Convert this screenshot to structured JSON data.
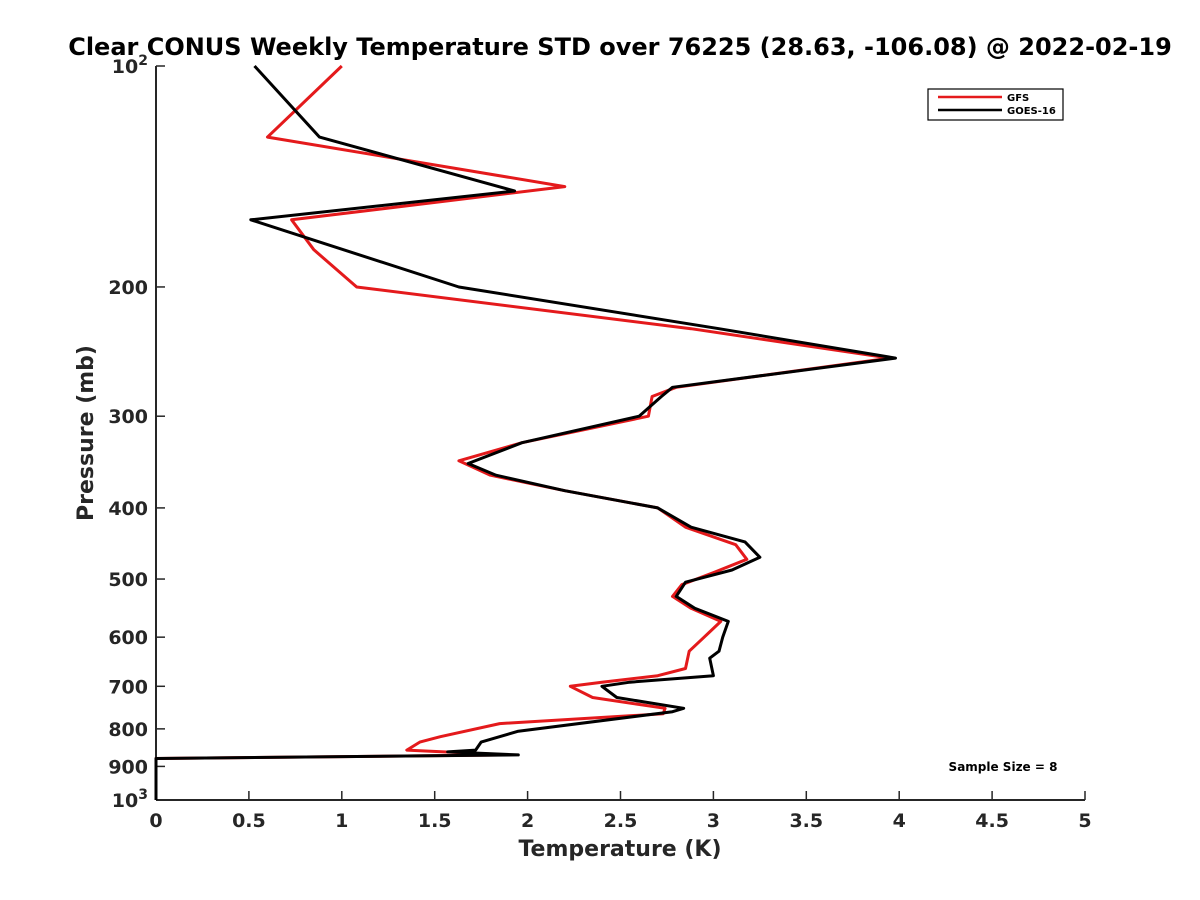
{
  "chart_data": {
    "type": "line",
    "title": "Clear CONUS Weekly Temperature STD over 76225 (28.63, -106.08) @ 2022-02-19",
    "xlabel": "Temperature (K)",
    "ylabel": "Pressure (mb)",
    "xlim": [
      0,
      5
    ],
    "ylim": [
      100,
      1000
    ],
    "y_scale": "log",
    "y_reversed": true,
    "x_ticks": [
      "0",
      "0.5",
      "1",
      "1.5",
      "2",
      "2.5",
      "3",
      "3.5",
      "4",
      "4.5",
      "5"
    ],
    "x_tick_values": [
      0,
      0.5,
      1,
      1.5,
      2,
      2.5,
      3,
      3.5,
      4,
      4.5,
      5
    ],
    "y_ticks": [
      {
        "value": 100,
        "base": "10",
        "exp": "2"
      },
      {
        "value": 200,
        "label": "200"
      },
      {
        "value": 300,
        "label": "300"
      },
      {
        "value": 400,
        "label": "400"
      },
      {
        "value": 500,
        "label": "500"
      },
      {
        "value": 600,
        "label": "600"
      },
      {
        "value": 700,
        "label": "700"
      },
      {
        "value": 800,
        "label": "800"
      },
      {
        "value": 900,
        "label": "900"
      },
      {
        "value": 1000,
        "base": "10",
        "exp": "3"
      }
    ],
    "legend_position": "top-right",
    "annotation": "Sample Size = 8",
    "grid": false,
    "series": [
      {
        "name": "GFS",
        "color": "#e41a1c",
        "points": [
          [
            1.0,
            100
          ],
          [
            0.6,
            125
          ],
          [
            2.2,
            146
          ],
          [
            0.73,
            162
          ],
          [
            0.85,
            178
          ],
          [
            1.08,
            200
          ],
          [
            2.88,
            228
          ],
          [
            3.95,
            250
          ],
          [
            2.8,
            274
          ],
          [
            2.67,
            282
          ],
          [
            2.65,
            300
          ],
          [
            1.97,
            326
          ],
          [
            1.63,
            345
          ],
          [
            1.8,
            361
          ],
          [
            2.2,
            379
          ],
          [
            2.7,
            400
          ],
          [
            2.85,
            425
          ],
          [
            3.12,
            449
          ],
          [
            3.18,
            470
          ],
          [
            3.0,
            490
          ],
          [
            2.83,
            509
          ],
          [
            2.78,
            528
          ],
          [
            2.88,
            548
          ],
          [
            3.04,
            571
          ],
          [
            2.95,
            600
          ],
          [
            2.87,
            627
          ],
          [
            2.85,
            662
          ],
          [
            2.7,
            677
          ],
          [
            2.4,
            691
          ],
          [
            2.23,
            700
          ],
          [
            2.35,
            725
          ],
          [
            2.74,
            750
          ],
          [
            2.73,
            763
          ],
          [
            1.85,
            787
          ],
          [
            1.53,
            820
          ],
          [
            1.42,
            834
          ],
          [
            1.35,
            855
          ],
          [
            1.55,
            860
          ],
          [
            1.9,
            868
          ],
          [
            0.0,
            878
          ],
          [
            0.0,
            1000
          ]
        ]
      },
      {
        "name": "GOES-16",
        "color": "#000000",
        "points": [
          [
            0.53,
            100
          ],
          [
            0.88,
            125
          ],
          [
            1.93,
            148
          ],
          [
            0.51,
            162
          ],
          [
            1.63,
            200
          ],
          [
            3.03,
            228
          ],
          [
            3.98,
            250
          ],
          [
            2.78,
            274
          ],
          [
            2.72,
            282
          ],
          [
            2.6,
            300
          ],
          [
            1.97,
            326
          ],
          [
            1.68,
            348
          ],
          [
            1.83,
            361
          ],
          [
            2.2,
            379
          ],
          [
            2.7,
            400
          ],
          [
            2.88,
            425
          ],
          [
            3.17,
            445
          ],
          [
            3.25,
            467
          ],
          [
            3.1,
            486
          ],
          [
            2.85,
            505
          ],
          [
            2.8,
            528
          ],
          [
            2.9,
            548
          ],
          [
            3.08,
            571
          ],
          [
            3.05,
            600
          ],
          [
            3.03,
            627
          ],
          [
            2.98,
            641
          ],
          [
            3.0,
            677
          ],
          [
            2.55,
            691
          ],
          [
            2.4,
            700
          ],
          [
            2.48,
            725
          ],
          [
            2.84,
            750
          ],
          [
            2.78,
            758
          ],
          [
            1.95,
            806
          ],
          [
            1.75,
            834
          ],
          [
            1.72,
            855
          ],
          [
            1.57,
            860
          ],
          [
            1.95,
            868
          ],
          [
            0.0,
            878
          ],
          [
            0.0,
            1000
          ]
        ]
      }
    ]
  }
}
